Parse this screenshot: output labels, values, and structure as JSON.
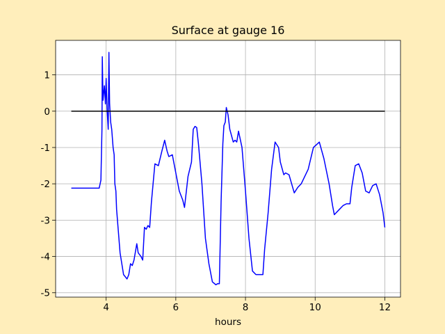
{
  "chart_data": {
    "type": "line",
    "title": "Surface at gauge 16",
    "x_label": "hours",
    "xlim": [
      2.55,
      12.45
    ],
    "ylim": [
      -5.12,
      1.95
    ],
    "xticks": [
      4,
      6,
      8,
      10,
      12
    ],
    "yticks": [
      -5,
      -4,
      -3,
      -2,
      -1,
      0,
      1
    ],
    "grid": true,
    "series": [
      {
        "color": "#0000ff",
        "x": [
          3.0,
          3.5,
          3.8,
          3.85,
          3.88,
          3.89,
          3.91,
          3.95,
          3.98,
          4.0,
          4.03,
          4.06,
          4.08,
          4.1,
          4.13,
          4.16,
          4.2,
          4.23,
          4.25,
          4.28,
          4.3,
          4.35,
          4.4,
          4.5,
          4.6,
          4.65,
          4.7,
          4.75,
          4.8,
          4.88,
          4.92,
          5.0,
          5.05,
          5.1,
          5.15,
          5.2,
          5.25,
          5.3,
          5.4,
          5.5,
          5.6,
          5.68,
          5.75,
          5.8,
          5.9,
          6.0,
          6.1,
          6.2,
          6.25,
          6.35,
          6.45,
          6.5,
          6.55,
          6.6,
          6.65,
          6.75,
          6.85,
          6.95,
          7.05,
          7.15,
          7.2,
          7.25,
          7.3,
          7.35,
          7.38,
          7.42,
          7.45,
          7.5,
          7.55,
          7.65,
          7.7,
          7.75,
          7.8,
          7.9,
          8.0,
          8.1,
          8.2,
          8.3,
          8.45,
          8.5,
          8.55,
          8.65,
          8.75,
          8.85,
          8.95,
          9.0,
          9.1,
          9.15,
          9.25,
          9.4,
          9.5,
          9.6,
          9.8,
          9.95,
          10.12,
          10.25,
          10.4,
          10.5,
          10.55,
          10.7,
          10.8,
          10.9,
          11.0,
          11.05,
          11.15,
          11.25,
          11.35,
          11.45,
          11.55,
          11.65,
          11.75,
          11.85,
          11.95,
          12.0
        ],
        "values": [
          -2.12,
          -2.12,
          -2.12,
          -1.9,
          -0.5,
          1.5,
          0.3,
          0.7,
          0.2,
          0.9,
          0.0,
          -0.5,
          1.62,
          0.2,
          -0.3,
          -0.5,
          -1.0,
          -1.2,
          -2.0,
          -2.2,
          -2.7,
          -3.3,
          -3.9,
          -4.5,
          -4.62,
          -4.5,
          -4.2,
          -4.25,
          -4.1,
          -3.65,
          -3.9,
          -4.0,
          -4.1,
          -3.2,
          -3.25,
          -3.15,
          -3.2,
          -2.5,
          -1.45,
          -1.5,
          -1.1,
          -0.8,
          -1.1,
          -1.25,
          -1.2,
          -1.7,
          -2.2,
          -2.45,
          -2.65,
          -1.8,
          -1.4,
          -0.5,
          -0.42,
          -0.45,
          -0.9,
          -2.0,
          -3.5,
          -4.2,
          -4.7,
          -4.78,
          -4.75,
          -4.75,
          -2.5,
          -0.9,
          -0.4,
          -0.3,
          0.1,
          -0.1,
          -0.5,
          -0.85,
          -0.8,
          -0.85,
          -0.55,
          -1.0,
          -2.2,
          -3.5,
          -4.4,
          -4.5,
          -4.5,
          -4.5,
          -3.8,
          -2.8,
          -1.6,
          -0.85,
          -1.0,
          -1.4,
          -1.75,
          -1.7,
          -1.75,
          -2.25,
          -2.1,
          -2.0,
          -1.6,
          -1.0,
          -0.85,
          -1.3,
          -2.0,
          -2.6,
          -2.85,
          -2.7,
          -2.6,
          -2.55,
          -2.55,
          -2.1,
          -1.5,
          -1.45,
          -1.7,
          -2.2,
          -2.25,
          -2.05,
          -2.0,
          -2.3,
          -2.8,
          -3.2
        ]
      },
      {
        "color": "#000000",
        "x": [
          3,
          12
        ],
        "values": [
          0,
          0
        ]
      }
    ]
  }
}
